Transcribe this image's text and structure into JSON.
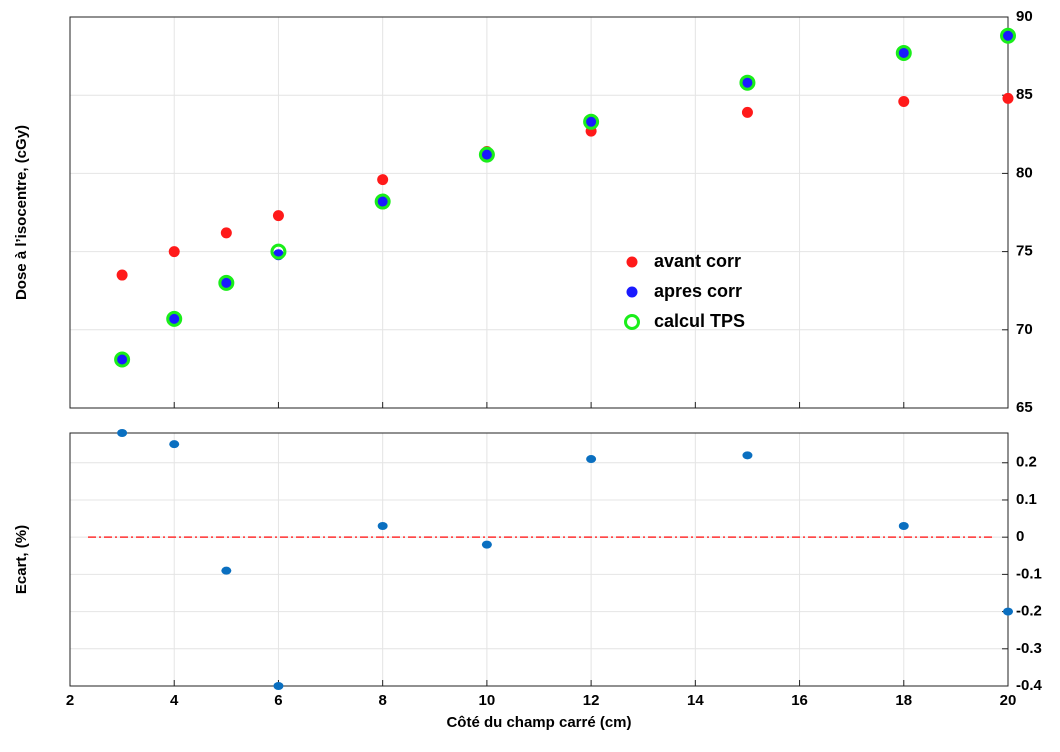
{
  "chart_data": [
    {
      "type": "scatter",
      "ylabel": "Dose à l’isocentre, (cGy)",
      "xlim": [
        2,
        20
      ],
      "xticks": [
        2,
        4,
        6,
        8,
        10,
        12,
        14,
        16,
        18,
        20
      ],
      "ylim": [
        65,
        90
      ],
      "yticks": [
        65,
        70,
        75,
        80,
        85,
        90
      ],
      "grid": true,
      "yaxis_side": "right",
      "legend": "center right",
      "series": [
        {
          "name": "avant corr",
          "color": "#ff1a1a",
          "marker": "filled",
          "x": [
            3,
            4,
            5,
            6,
            8,
            10,
            12,
            15,
            18,
            20
          ],
          "values": [
            73.5,
            75.0,
            76.2,
            77.3,
            79.6,
            81.4,
            82.7,
            83.9,
            84.6,
            84.8
          ]
        },
        {
          "name": "apres corr",
          "color": "#1a1aff",
          "marker": "filled",
          "x": [
            3,
            4,
            5,
            6,
            8,
            10,
            12,
            15,
            18,
            20
          ],
          "values": [
            68.1,
            70.7,
            73.0,
            74.8,
            78.2,
            81.2,
            83.3,
            85.8,
            87.7,
            88.8
          ]
        },
        {
          "name": "calcul TPS",
          "color": "#1aee1a",
          "marker": "open",
          "x": [
            3,
            4,
            5,
            6,
            8,
            10,
            12,
            15,
            18,
            20
          ],
          "values": [
            68.1,
            70.7,
            73.0,
            75.0,
            78.2,
            81.2,
            83.3,
            85.8,
            87.7,
            88.8
          ]
        }
      ]
    },
    {
      "type": "scatter",
      "xlabel": "Côté du champ carré (cm)",
      "ylabel": "Ecart, (%)",
      "xlim": [
        2,
        20
      ],
      "xticks": [
        2,
        4,
        6,
        8,
        10,
        12,
        14,
        16,
        18,
        20
      ],
      "ylim": [
        -0.4,
        0.28
      ],
      "yticks": [
        -0.4,
        -0.3,
        -0.2,
        -0.1,
        0,
        0.1,
        0.2
      ],
      "grid": true,
      "yaxis_side": "right",
      "reference_line": 0,
      "reference_color": "#ff3030",
      "series": [
        {
          "color": "#0a6fc0",
          "marker": "ellipse",
          "x": [
            3,
            4,
            5,
            6,
            8,
            10,
            12,
            15,
            18,
            20
          ],
          "values": [
            0.28,
            0.25,
            -0.09,
            -0.4,
            0.03,
            -0.02,
            0.21,
            0.22,
            0.03,
            -0.2
          ]
        }
      ]
    }
  ]
}
